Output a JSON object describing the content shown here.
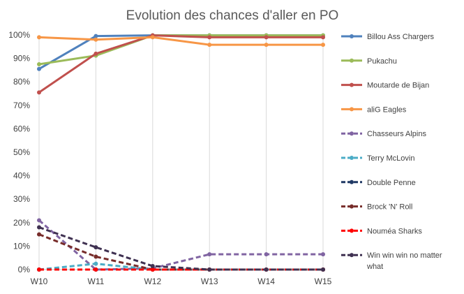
{
  "chart_data": {
    "type": "line",
    "title": "Evolution des chances d'aller en PO",
    "xlabel": "",
    "ylabel": "",
    "categories": [
      "W10",
      "W11",
      "W12",
      "W13",
      "W14",
      "W15"
    ],
    "y_ticks": [
      "0%",
      "10%",
      "20%",
      "30%",
      "40%",
      "50%",
      "60%",
      "70%",
      "80%",
      "90%",
      "100%"
    ],
    "ylim": [
      0,
      100
    ],
    "y_unit": "%",
    "grid": "vertical lines only",
    "legend_position": "right",
    "series": [
      {
        "name": "Billou Ass Chargers",
        "color": "#4f81bd",
        "dash": false,
        "values": [
          85.5,
          99.5,
          99.8,
          99.8,
          99.8,
          99.8
        ]
      },
      {
        "name": "Pukachu",
        "color": "#9bbb59",
        "dash": false,
        "values": [
          87.5,
          91.2,
          99.8,
          99.8,
          99.8,
          99.8
        ]
      },
      {
        "name": "Moutarde de Bijan",
        "color": "#c0504d",
        "dash": false,
        "values": [
          75.5,
          92,
          99.8,
          99,
          99,
          99
        ]
      },
      {
        "name": "aliG Eagles",
        "color": "#f79646",
        "dash": false,
        "values": [
          99,
          98,
          99,
          95.8,
          95.8,
          95.8
        ]
      },
      {
        "name": "Chasseurs Alpins",
        "color": "#8064a2",
        "dash": true,
        "values": [
          21,
          0,
          0.5,
          6.5,
          6.5,
          6.5
        ]
      },
      {
        "name": "Terry McLovin",
        "color": "#4bacc6",
        "dash": true,
        "values": [
          0,
          2.5,
          0,
          0,
          0,
          0
        ]
      },
      {
        "name": "Double Penne",
        "color": "#1f3864",
        "dash": true,
        "values": [
          0,
          0,
          0,
          0,
          0,
          0
        ]
      },
      {
        "name": "Brock 'N' Roll",
        "color": "#772c2a",
        "dash": true,
        "values": [
          15,
          5.5,
          0,
          0,
          0,
          0
        ]
      },
      {
        "name": "Nouméa Sharks",
        "color": "#ff0000",
        "dash": true,
        "values": [
          0,
          0,
          0,
          0,
          0,
          0
        ]
      },
      {
        "name": "Win win win no matter what",
        "color": "#3f3151",
        "dash": true,
        "values": [
          18,
          9.5,
          1.5,
          0,
          0,
          0
        ]
      }
    ]
  }
}
